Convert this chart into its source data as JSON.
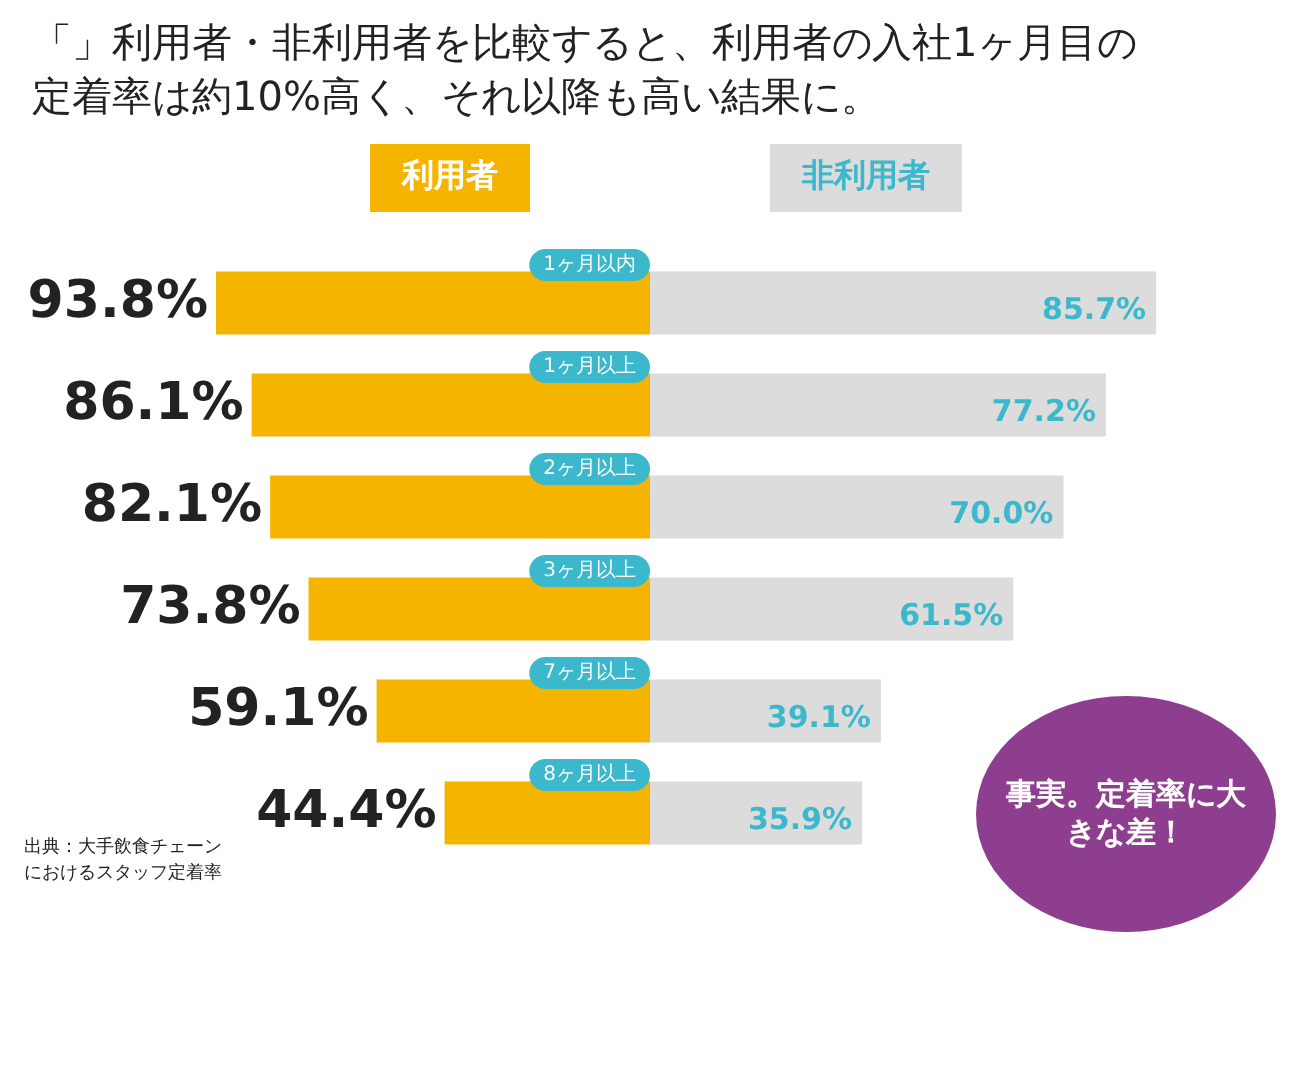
{
  "chart_data": [
    {
      "type": "bar",
      "orientation": "horizontal",
      "title": "「」利用者・非利用者を比較すると、利用者の入社1ヶ月目の定着率は約10%高く、それ以降も高い結果に。",
      "categories": [
        "1ヶ月以内",
        "1ヶ月以上",
        "2ヶ月以上",
        "3ヶ月以上",
        "7ヶ月以上",
        "8ヶ月以上"
      ],
      "series": [
        {
          "name": "利用者",
          "color": "#f5b400",
          "values": [
            93.8,
            86.1,
            82.1,
            73.8,
            59.1,
            44.4
          ],
          "value_labels": [
            "93.8%",
            "86.1%",
            "82.1%",
            "73.8%",
            "59.1%",
            "44.4%"
          ]
        }
      ],
      "legend": "top",
      "annotations": [
        "出典：大手飲食チェーンにおけるスタッフ定着率"
      ]
    },
    {
      "type": "bar",
      "orientation": "horizontal",
      "categories": [
        null,
        null,
        null,
        null,
        null,
        null
      ],
      "series": [
        {
          "name": "非利用者",
          "color": "#dcdcdc",
          "values": [
            85.7,
            77.2,
            70.0,
            61.5,
            39.1,
            35.9
          ],
          "value_labels": [
            "85.7%",
            "77.2%",
            "70.0%",
            "61.5%",
            "39.1%",
            "35.9%"
          ]
        }
      ],
      "legend": "top",
      "annotations": [
        "事実。定着率に大きな差！"
      ]
    }
  ]
}
